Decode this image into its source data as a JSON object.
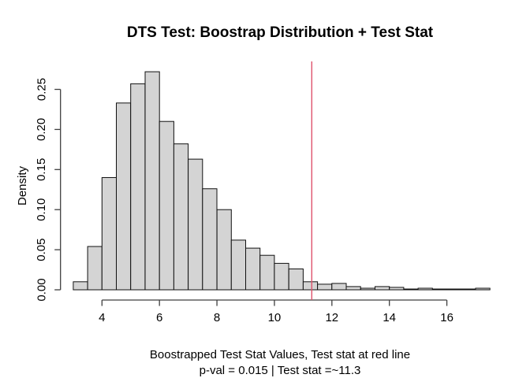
{
  "chart_data": {
    "type": "bar",
    "subtype": "histogram",
    "title": "DTS Test: Boostrap Distribution + Test Stat",
    "xlabel": "Boostrapped Test Stat Values, Test stat at red line",
    "xlabel2": "p-val = 0.015 | Test stat =~11.3",
    "ylabel": "Density",
    "bin_start": 3.0,
    "bin_width": 0.5,
    "bin_edges": [
      3.0,
      3.5,
      4.0,
      4.5,
      5.0,
      5.5,
      6.0,
      6.5,
      7.0,
      7.5,
      8.0,
      8.5,
      9.0,
      9.5,
      10.0,
      10.5,
      11.0,
      11.5,
      12.0,
      12.5,
      13.0,
      13.5,
      14.0,
      14.5,
      15.0,
      15.5,
      16.0,
      16.5,
      17.0,
      17.5
    ],
    "densities": [
      0.01,
      0.054,
      0.14,
      0.233,
      0.257,
      0.272,
      0.21,
      0.182,
      0.163,
      0.126,
      0.1,
      0.062,
      0.052,
      0.043,
      0.033,
      0.026,
      0.01,
      0.007,
      0.008,
      0.004,
      0.002,
      0.004,
      0.003,
      0.001,
      0.002,
      0.001,
      0.001,
      0.001,
      0.002
    ],
    "x_ticks": [
      4,
      6,
      8,
      10,
      12,
      14,
      16
    ],
    "y_ticks": [
      0.0,
      0.05,
      0.1,
      0.15,
      0.2,
      0.25
    ],
    "y_tick_labels": [
      "0.00",
      "0.05",
      "0.10",
      "0.15",
      "0.20",
      "0.25"
    ],
    "xlim": [
      3.0,
      17.5
    ],
    "ylim": [
      0,
      0.28
    ],
    "test_stat": 11.3,
    "p_value": 0.015,
    "grid": false,
    "legend": "none",
    "colors": {
      "bar_fill": "#d4d4d4",
      "bar_stroke": "#111111",
      "test_line": "#df536b",
      "axis": "#3f3f3f",
      "text": "#000000"
    }
  }
}
